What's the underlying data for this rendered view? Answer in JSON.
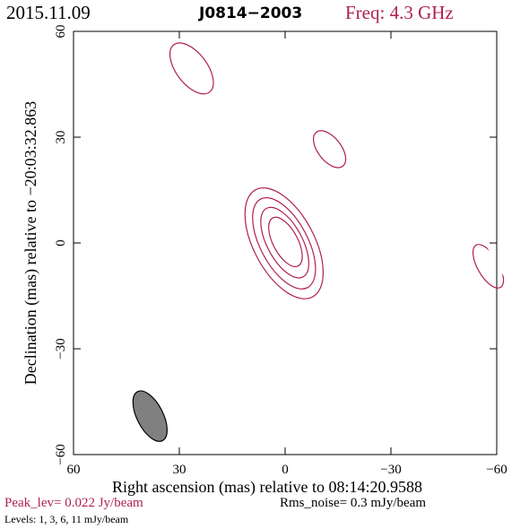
{
  "header": {
    "date": "2015.11.09",
    "source": "J0814−2003",
    "freq": "Freq: 4.3 GHz"
  },
  "footer": {
    "peak": "Peak_lev=  0.022 Jy/beam",
    "rms": "Rms_noise=   0.3 mJy/beam",
    "levels": "Levels:   1,   3,   6,  11 mJy/beam"
  },
  "colors": {
    "contour": "#b0204f",
    "beam_fill": "#808080",
    "axis": "#000000"
  },
  "chart_data": {
    "type": "contour",
    "xlabel": "Right ascension (mas) relative to 08:14:20.9588",
    "ylabel": "Declination (mas) relative to −20:03:32.863",
    "xlim": [
      60,
      -60
    ],
    "ylim": [
      -60,
      60
    ],
    "x_ticks": [
      60,
      30,
      0,
      -30,
      -60
    ],
    "y_ticks": [
      -60,
      -30,
      0,
      30,
      60
    ],
    "x_tick_labels": [
      "60",
      "30",
      "0",
      "−30",
      "−60"
    ],
    "y_tick_labels": [
      "−60",
      "−30",
      "0",
      "30",
      "60"
    ],
    "grid": false,
    "levels_mJy_per_beam": [
      1,
      3,
      6,
      11
    ],
    "contours": [
      {
        "level": 1,
        "center": [
          0.3,
          -0.1
        ],
        "rx": 8.6,
        "ry": 17.2,
        "angle_deg": 28
      },
      {
        "level": 3,
        "center": [
          0.3,
          -0.1
        ],
        "rx": 6.7,
        "ry": 14.2,
        "angle_deg": 28
      },
      {
        "level": 6,
        "center": [
          0.1,
          0.1
        ],
        "rx": 5.0,
        "ry": 11.0,
        "angle_deg": 28
      },
      {
        "level": 11,
        "center": [
          -0.1,
          0.3
        ],
        "rx": 3.5,
        "ry": 7.7,
        "angle_deg": 28
      },
      {
        "level": 1,
        "center": [
          26.5,
          49.5
        ],
        "rx": 4.4,
        "ry": 8.4,
        "angle_deg": 37
      },
      {
        "level": 1,
        "center": [
          -12.6,
          26.6
        ],
        "rx": 3.3,
        "ry": 6.1,
        "angle_deg": 38
      },
      {
        "level": 1,
        "center": [
          -57.6,
          -6.6
        ],
        "rx": 3.0,
        "ry": 6.9,
        "angle_deg": 30
      }
    ],
    "beam": {
      "center": [
        38.3,
        -49.1
      ],
      "major": 7.8,
      "minor": 3.7,
      "angle_deg": 27
    }
  }
}
